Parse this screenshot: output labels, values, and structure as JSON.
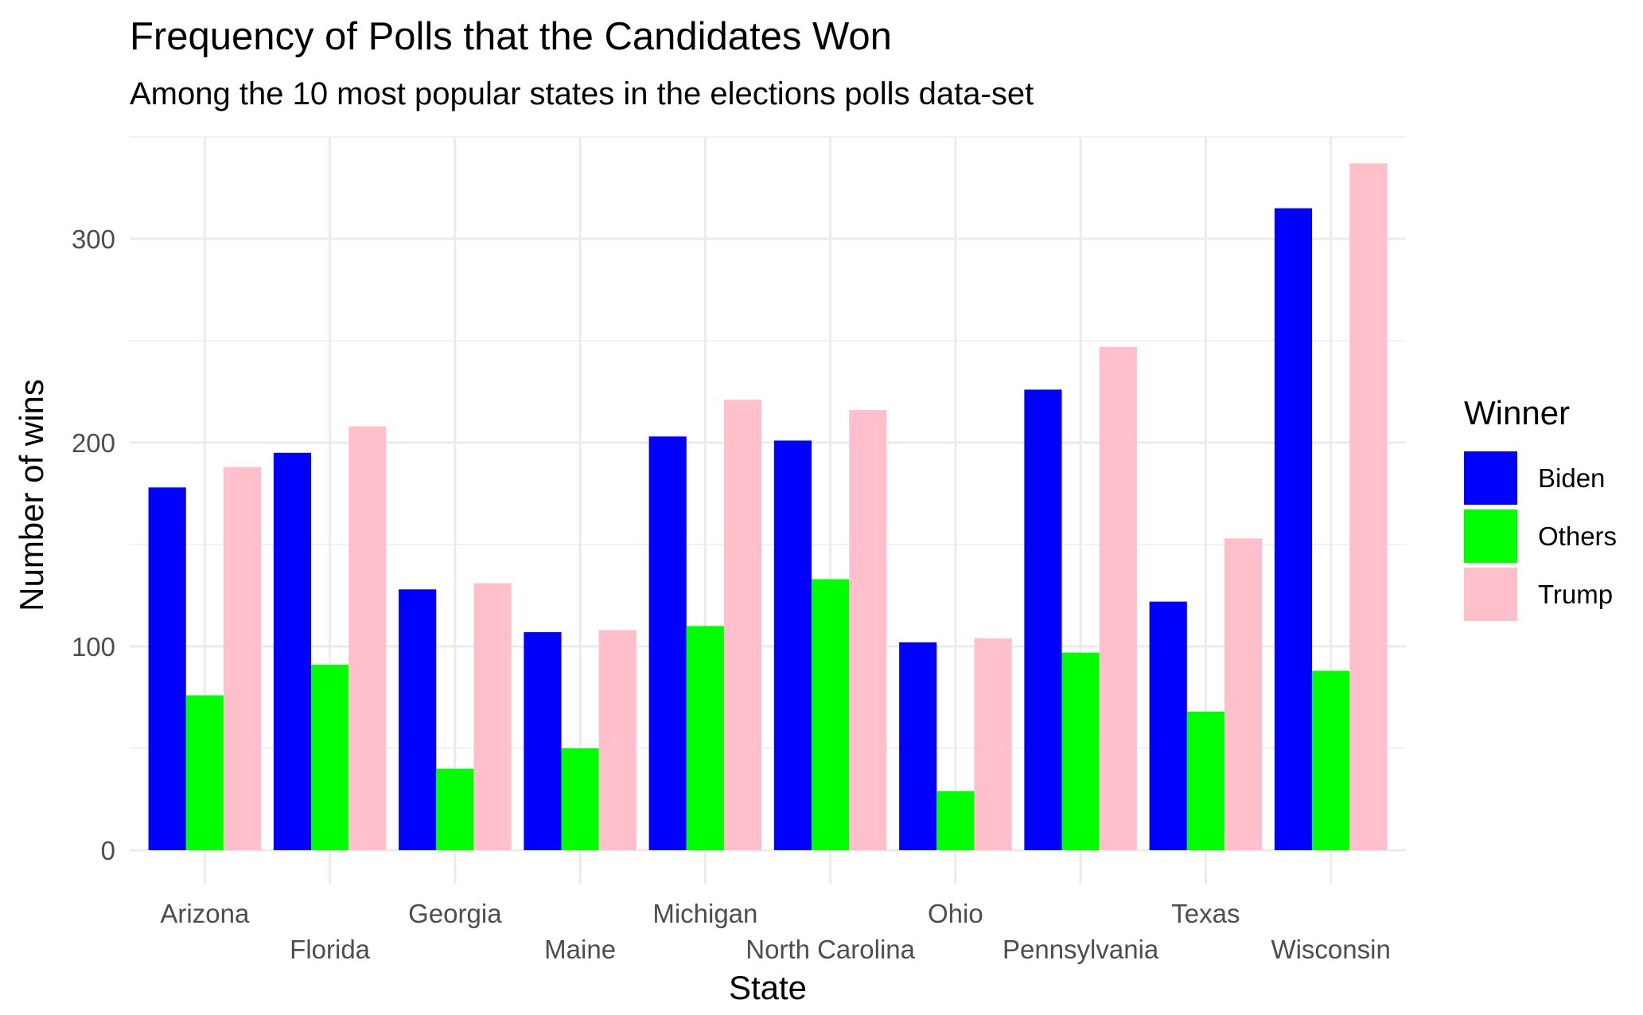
{
  "chart_data": {
    "type": "bar",
    "title": "Frequency of Polls that the Candidates Won",
    "subtitle": "Among the 10 most popular states in the elections polls data-set",
    "xlabel": "State",
    "ylabel": "Number of wins",
    "ylim": [
      0,
      350
    ],
    "yticks": [
      0,
      100,
      200,
      300
    ],
    "grid": true,
    "legend": {
      "title": "Winner",
      "position": "right"
    },
    "categories": [
      "Arizona",
      "Florida",
      "Georgia",
      "Maine",
      "Michigan",
      "North Carolina",
      "Ohio",
      "Pennsylvania",
      "Texas",
      "Wisconsin"
    ],
    "series": [
      {
        "name": "Biden",
        "color": "#0000ff",
        "values": [
          178,
          195,
          128,
          107,
          203,
          201,
          102,
          226,
          122,
          315
        ]
      },
      {
        "name": "Others",
        "color": "#00ff00",
        "values": [
          76,
          91,
          40,
          50,
          110,
          133,
          29,
          97,
          68,
          88
        ]
      },
      {
        "name": "Trump",
        "color": "#ffc0cb",
        "values": [
          188,
          208,
          131,
          108,
          221,
          216,
          104,
          247,
          153,
          337
        ]
      }
    ]
  }
}
